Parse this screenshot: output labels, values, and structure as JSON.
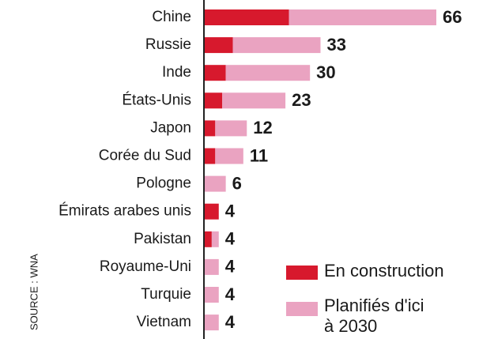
{
  "chart_data": {
    "type": "stacked-bar-horizontal",
    "source": "SOURCE : WNA",
    "categories": [
      "Chine",
      "Russie",
      "Inde",
      "États-Unis",
      "Japon",
      "Corée du Sud",
      "Pologne",
      "Émirats arabes unis",
      "Pakistan",
      "Royaume-Uni",
      "Turquie",
      "Vietnam"
    ],
    "series": [
      {
        "name": "En construction",
        "color": "#d7192d",
        "values": [
          24,
          8,
          6,
          5,
          3,
          3,
          0,
          4,
          2,
          0,
          0,
          0
        ]
      },
      {
        "name": "Planifiés d'ici à 2030",
        "color": "#eaa3c1",
        "values": [
          42,
          25,
          24,
          18,
          9,
          8,
          6,
          0,
          2,
          4,
          4,
          4
        ]
      }
    ],
    "totals": [
      66,
      33,
      30,
      23,
      12,
      11,
      6,
      4,
      4,
      4,
      4,
      4
    ],
    "xlim": [
      0,
      66
    ]
  }
}
